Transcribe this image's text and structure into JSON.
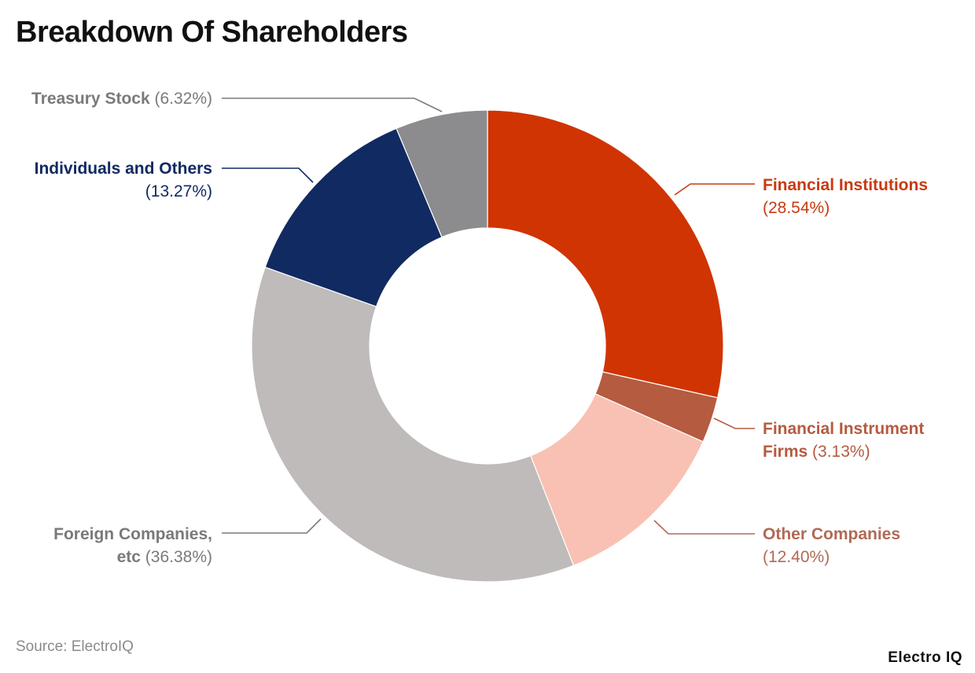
{
  "title": "Breakdown Of Shareholders",
  "source": "Source: ElectroIQ",
  "brand": "Electro IQ",
  "chart_data": {
    "type": "pie",
    "donut": true,
    "title": "Breakdown Of Shareholders",
    "slices": [
      {
        "name": "Financial Institutions",
        "value": 28.54,
        "pct_label": "(28.54%)",
        "color": "#d03403",
        "label_color": "#c83a10"
      },
      {
        "name": "Financial Instrument Firms",
        "value": 3.13,
        "pct_label": "(3.13%)",
        "color": "#b55b40",
        "label_color": "#b55b40"
      },
      {
        "name": "Other Companies",
        "value": 12.4,
        "pct_label": "(12.40%)",
        "color": "#f8c1b3",
        "label_color": "#b06a55"
      },
      {
        "name": "Foreign Companies, etc",
        "value": 36.38,
        "pct_label": "(36.38%)",
        "color": "#bfbbba",
        "label_color": "#7a7a7a"
      },
      {
        "name": "Individuals and Others",
        "value": 13.27,
        "pct_label": "(13.27%)",
        "color": "#112a62",
        "label_color": "#112a62"
      },
      {
        "name": "Treasury Stock",
        "value": 6.32,
        "pct_label": "(6.32%)",
        "color": "#8c8c8e",
        "label_color": "#7a7a7a"
      }
    ]
  }
}
